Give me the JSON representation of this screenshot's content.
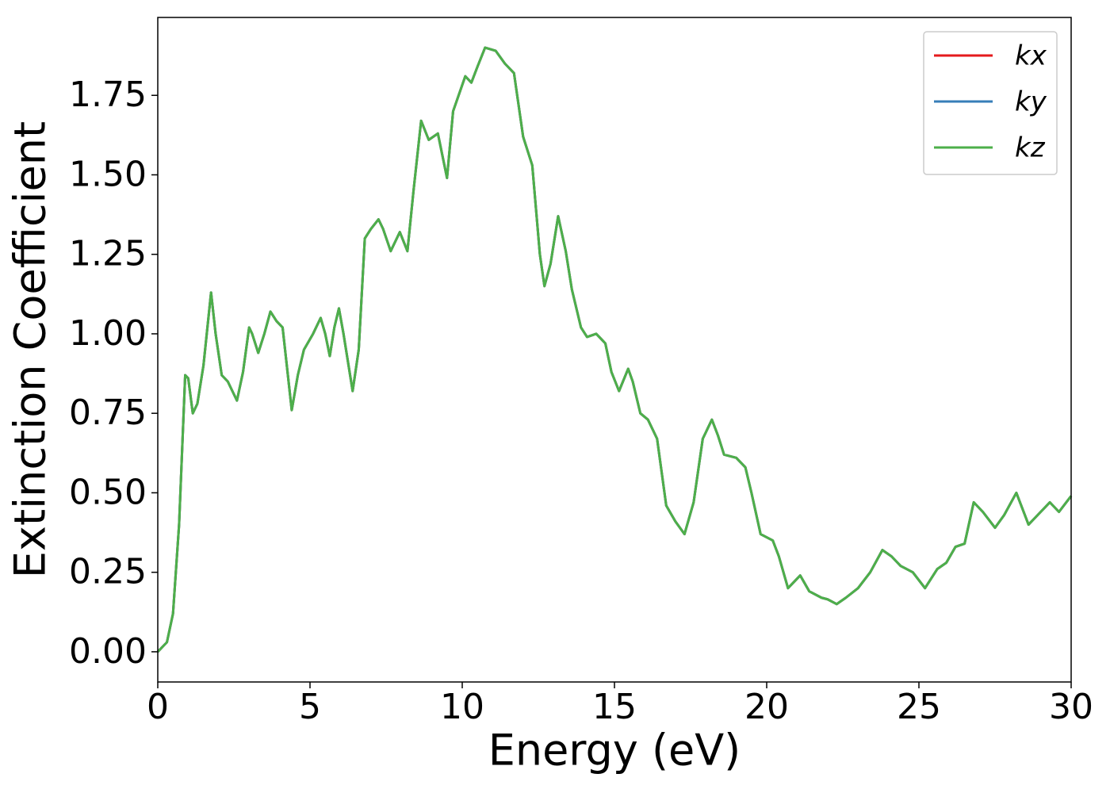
{
  "chart_data": {
    "type": "line",
    "xlabel": "Energy (eV)",
    "ylabel": "Extinction Coefficient",
    "xlim": [
      0,
      30
    ],
    "ylim": [
      -0.095,
      1.995
    ],
    "xticks": [
      0,
      5,
      10,
      15,
      20,
      25,
      30
    ],
    "yticks": [
      {
        "value": 0,
        "label": "0.00"
      },
      {
        "value": 0.25,
        "label": "0.25"
      },
      {
        "value": 0.5,
        "label": "0.50"
      },
      {
        "value": 0.75,
        "label": "0.75"
      },
      {
        "value": 1,
        "label": "1.00"
      },
      {
        "value": 1.25,
        "label": "1.25"
      },
      {
        "value": 1.5,
        "label": "1.50"
      },
      {
        "value": 1.75,
        "label": "1.75"
      }
    ],
    "legend": "upper right",
    "x": [
      0,
      0.3,
      0.5,
      0.7,
      0.9,
      1.0,
      1.15,
      1.3,
      1.5,
      1.75,
      1.9,
      2.1,
      2.3,
      2.6,
      2.8,
      3.0,
      3.1,
      3.3,
      3.5,
      3.7,
      3.9,
      4.1,
      4.4,
      4.6,
      4.8,
      5.1,
      5.35,
      5.5,
      5.65,
      5.8,
      5.95,
      6.1,
      6.4,
      6.6,
      6.8,
      7.0,
      7.25,
      7.4,
      7.65,
      7.95,
      8.2,
      8.4,
      8.65,
      8.9,
      9.2,
      9.5,
      9.7,
      10.1,
      10.3,
      10.5,
      10.75,
      11.1,
      11.4,
      11.7,
      12.0,
      12.3,
      12.55,
      12.7,
      12.9,
      13.15,
      13.4,
      13.6,
      13.9,
      14.1,
      14.4,
      14.7,
      14.9,
      15.15,
      15.45,
      15.6,
      15.85,
      16.1,
      16.4,
      16.7,
      17.0,
      17.3,
      17.6,
      17.9,
      18.2,
      18.4,
      18.6,
      19.0,
      19.3,
      19.5,
      19.8,
      20.2,
      20.4,
      20.7,
      21.1,
      21.4,
      21.8,
      22.0,
      22.3,
      22.6,
      23.0,
      23.4,
      23.8,
      24.1,
      24.4,
      24.8,
      25.2,
      25.6,
      25.9,
      26.2,
      26.5,
      26.8,
      27.1,
      27.5,
      27.8,
      28.2,
      28.6,
      29.0,
      29.3,
      29.6,
      30.0
    ],
    "series": [
      {
        "name": "kx",
        "color": "#e41a1c",
        "values": [
          0,
          0.03,
          0.12,
          0.4,
          0.87,
          0.86,
          0.75,
          0.78,
          0.9,
          1.13,
          1.0,
          0.87,
          0.85,
          0.79,
          0.88,
          1.02,
          1.0,
          0.94,
          1.0,
          1.07,
          1.04,
          1.02,
          0.76,
          0.87,
          0.95,
          1.0,
          1.05,
          1.0,
          0.93,
          1.02,
          1.08,
          1.0,
          0.82,
          0.95,
          1.3,
          1.33,
          1.36,
          1.33,
          1.26,
          1.32,
          1.26,
          1.45,
          1.67,
          1.61,
          1.63,
          1.49,
          1.7,
          1.81,
          1.79,
          1.84,
          1.9,
          1.89,
          1.85,
          1.82,
          1.62,
          1.53,
          1.25,
          1.15,
          1.22,
          1.37,
          1.26,
          1.14,
          1.02,
          0.99,
          1.0,
          0.97,
          0.88,
          0.82,
          0.89,
          0.85,
          0.75,
          0.73,
          0.67,
          0.46,
          0.41,
          0.37,
          0.47,
          0.67,
          0.73,
          0.68,
          0.62,
          0.61,
          0.58,
          0.5,
          0.37,
          0.35,
          0.3,
          0.2,
          0.24,
          0.19,
          0.17,
          0.165,
          0.15,
          0.17,
          0.2,
          0.25,
          0.32,
          0.3,
          0.27,
          0.25,
          0.2,
          0.26,
          0.28,
          0.33,
          0.34,
          0.47,
          0.44,
          0.39,
          0.43,
          0.5,
          0.4,
          0.44,
          0.47,
          0.44,
          0.49
        ]
      },
      {
        "name": "ky",
        "color": "#377eb8",
        "values": [
          0,
          0.03,
          0.12,
          0.4,
          0.87,
          0.86,
          0.75,
          0.78,
          0.9,
          1.13,
          1.0,
          0.87,
          0.85,
          0.79,
          0.88,
          1.02,
          1.0,
          0.94,
          1.0,
          1.07,
          1.04,
          1.02,
          0.76,
          0.87,
          0.95,
          1.0,
          1.05,
          1.0,
          0.93,
          1.02,
          1.08,
          1.0,
          0.82,
          0.95,
          1.3,
          1.33,
          1.36,
          1.33,
          1.26,
          1.32,
          1.26,
          1.45,
          1.67,
          1.61,
          1.63,
          1.49,
          1.7,
          1.81,
          1.79,
          1.84,
          1.9,
          1.89,
          1.85,
          1.82,
          1.62,
          1.53,
          1.25,
          1.15,
          1.22,
          1.37,
          1.26,
          1.14,
          1.02,
          0.99,
          1.0,
          0.97,
          0.88,
          0.82,
          0.89,
          0.85,
          0.75,
          0.73,
          0.67,
          0.46,
          0.41,
          0.37,
          0.47,
          0.67,
          0.73,
          0.68,
          0.62,
          0.61,
          0.58,
          0.5,
          0.37,
          0.35,
          0.3,
          0.2,
          0.24,
          0.19,
          0.17,
          0.165,
          0.15,
          0.17,
          0.2,
          0.25,
          0.32,
          0.3,
          0.27,
          0.25,
          0.2,
          0.26,
          0.28,
          0.33,
          0.34,
          0.47,
          0.44,
          0.39,
          0.43,
          0.5,
          0.4,
          0.44,
          0.47,
          0.44,
          0.49
        ]
      },
      {
        "name": "kz",
        "color": "#4daf4a",
        "values": [
          0,
          0.03,
          0.12,
          0.4,
          0.87,
          0.86,
          0.75,
          0.78,
          0.9,
          1.13,
          1.0,
          0.87,
          0.85,
          0.79,
          0.88,
          1.02,
          1.0,
          0.94,
          1.0,
          1.07,
          1.04,
          1.02,
          0.76,
          0.87,
          0.95,
          1.0,
          1.05,
          1.0,
          0.93,
          1.02,
          1.08,
          1.0,
          0.82,
          0.95,
          1.3,
          1.33,
          1.36,
          1.33,
          1.26,
          1.32,
          1.26,
          1.45,
          1.67,
          1.61,
          1.63,
          1.49,
          1.7,
          1.81,
          1.79,
          1.84,
          1.9,
          1.89,
          1.85,
          1.82,
          1.62,
          1.53,
          1.25,
          1.15,
          1.22,
          1.37,
          1.26,
          1.14,
          1.02,
          0.99,
          1.0,
          0.97,
          0.88,
          0.82,
          0.89,
          0.85,
          0.75,
          0.73,
          0.67,
          0.46,
          0.41,
          0.37,
          0.47,
          0.67,
          0.73,
          0.68,
          0.62,
          0.61,
          0.58,
          0.5,
          0.37,
          0.35,
          0.3,
          0.2,
          0.24,
          0.19,
          0.17,
          0.165,
          0.15,
          0.17,
          0.2,
          0.25,
          0.32,
          0.3,
          0.27,
          0.25,
          0.2,
          0.26,
          0.28,
          0.33,
          0.34,
          0.47,
          0.44,
          0.39,
          0.43,
          0.5,
          0.4,
          0.44,
          0.47,
          0.44,
          0.49
        ]
      }
    ]
  }
}
